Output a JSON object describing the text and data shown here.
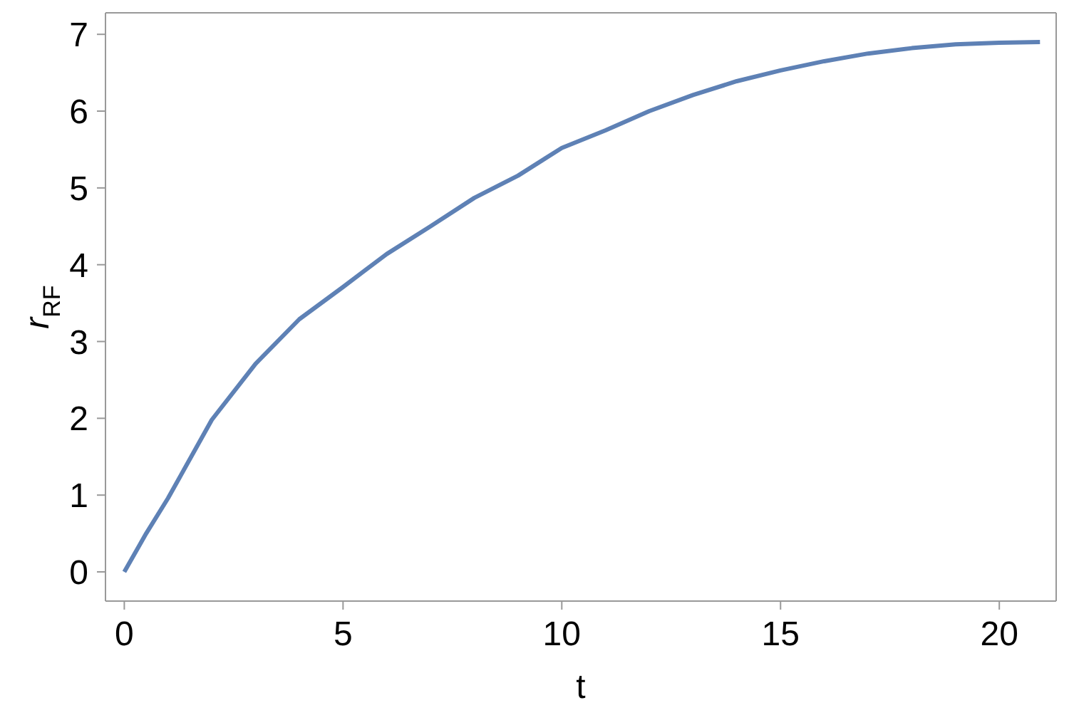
{
  "chart_data": {
    "type": "line",
    "xlabel": "t",
    "ylabel": "r$_{RF}$",
    "x": [
      0,
      0.5,
      1,
      2,
      3,
      4,
      5,
      6,
      7,
      8,
      9,
      10,
      11,
      12,
      13,
      14,
      15,
      16,
      17,
      18,
      19,
      20,
      20.93
    ],
    "series": [
      {
        "color": "#5e81b5",
        "values": [
          0,
          0.5,
          0.96,
          1.98,
          2.71,
          3.29,
          3.71,
          4.14,
          4.5,
          4.87,
          5.16,
          5.52,
          5.75,
          6.0,
          6.21,
          6.39,
          6.53,
          6.65,
          6.75,
          6.82,
          6.87,
          6.89,
          6.9
        ]
      }
    ],
    "xlim": [
      -0.43,
      21.3
    ],
    "ylim": [
      -0.38,
      7.28
    ],
    "xticks": [
      0,
      5,
      10,
      15,
      20
    ],
    "yticks": [
      0,
      1,
      2,
      3,
      4,
      5,
      6,
      7
    ],
    "grid": false,
    "legend": false,
    "marker": "none",
    "line_style": "solid"
  }
}
